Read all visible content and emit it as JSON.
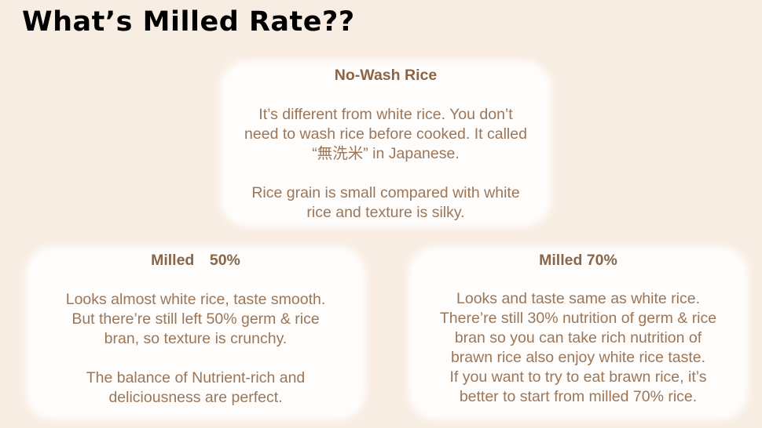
{
  "title": "What’s Milled Rate??",
  "cards": [
    {
      "heading": "No-Wash Rice",
      "paragraphs": [
        "It’s different from white rice. You don’t\nneed to wash rice before cooked. It called\n“無洗米” in Japanese.",
        "Rice grain is small compared with white\nrice and texture is silky."
      ]
    },
    {
      "heading": "Milled　50%",
      "paragraphs": [
        "Looks almost white rice, taste smooth.\nBut there’re still left 50% germ & rice\nbran, so texture is  crunchy.",
        "The balance of Nutrient-rich and\ndeliciousness are perfect."
      ]
    },
    {
      "heading": "Milled 70%",
      "paragraphs": [
        "Looks and taste same as white rice.\nThere’re still 30% nutrition of germ & rice\nbran so you can take rich nutrition of\nbrawn rice also enjoy white rice taste.\nIf you want to try to eat brawn rice, it’s\nbetter to start from milled 70% rice."
      ]
    }
  ],
  "colors": {
    "background": "#f8ede2",
    "heading": "#8a6548",
    "body": "#9b7658"
  }
}
